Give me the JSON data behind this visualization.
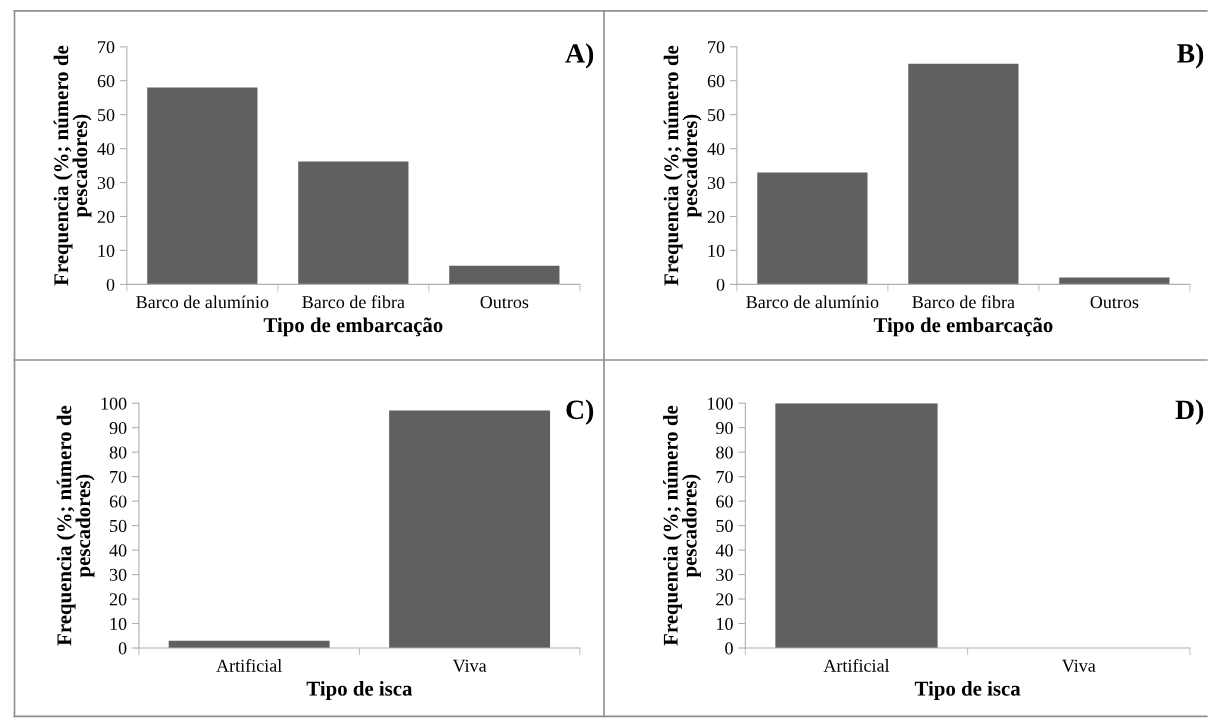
{
  "chart_data": [
    {
      "type": "bar",
      "title": "A)",
      "xlabel": "Tipo de embarcação",
      "ylabel": "Frequencia (%; número de\npescadores)",
      "categories": [
        "Barco de alumínio",
        "Barco de fibra",
        "Outros"
      ],
      "values": [
        58,
        36.2,
        5.5
      ],
      "color": "#606060",
      "ylim": [
        0,
        70
      ],
      "yticks": [
        0,
        10,
        20,
        30,
        40,
        50,
        60,
        70
      ]
    },
    {
      "type": "bar",
      "title": "B)",
      "xlabel": "Tipo de embarcação",
      "ylabel": "Frequencia (%; número de\npescadores)",
      "categories": [
        "Barco de alumínio",
        "Barco de fibra",
        "Outros"
      ],
      "values": [
        33,
        65,
        2
      ],
      "color": "#606060",
      "ylim": [
        0,
        70
      ],
      "yticks": [
        0,
        10,
        20,
        30,
        40,
        50,
        60,
        70
      ]
    },
    {
      "type": "bar",
      "title": "C)",
      "xlabel": "Tipo de isca",
      "ylabel": "Frequencia (%; número de\npescadores)",
      "categories": [
        "Artificial",
        "Viva"
      ],
      "values": [
        3,
        97
      ],
      "color": "#606060",
      "ylim": [
        0,
        100
      ],
      "yticks": [
        0,
        10,
        20,
        30,
        40,
        50,
        60,
        70,
        80,
        90,
        100
      ]
    },
    {
      "type": "bar",
      "title": "D)",
      "xlabel": "Tipo de isca",
      "ylabel": "Frequencia (%; número de\npescadores)",
      "categories": [
        "Artificial",
        "Viva"
      ],
      "values": [
        100,
        0
      ],
      "color": "#606060",
      "ylim": [
        0,
        100
      ],
      "yticks": [
        0,
        10,
        20,
        30,
        40,
        50,
        60,
        70,
        80,
        90,
        100
      ]
    }
  ]
}
